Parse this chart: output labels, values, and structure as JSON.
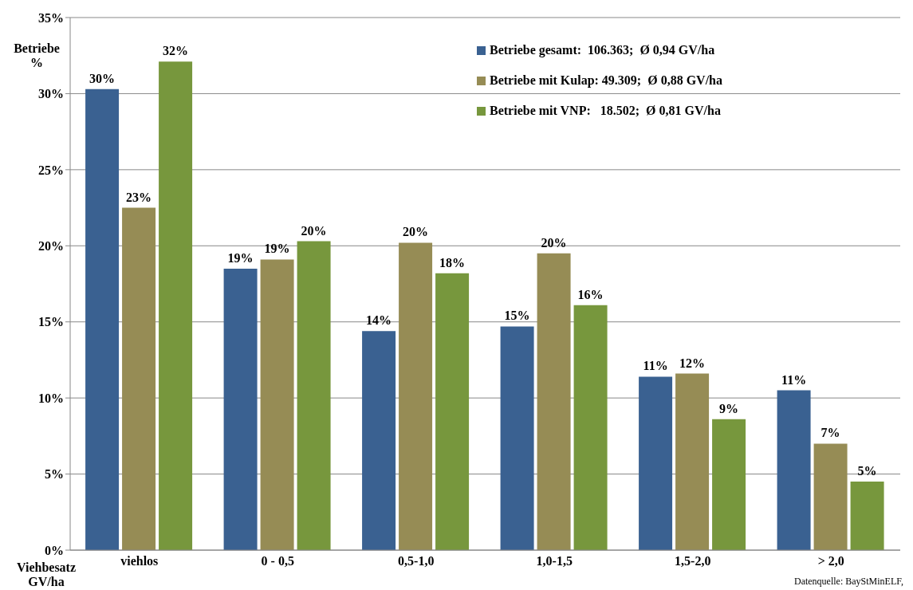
{
  "chart_data": {
    "type": "bar",
    "xlabel": "Viehbesatz GV/ha",
    "ylabel": "Betriebe %",
    "categories": [
      "viehlos",
      "0 - 0,5",
      "0,5-1,0",
      "1,0-1,5",
      "1,5-2,0",
      "> 2,0"
    ],
    "series": [
      {
        "name": "Betriebe gesamt:  106.363;  Ø 0,94 GV/ha",
        "color": "#3a6191",
        "values": [
          30.3,
          18.5,
          14.4,
          14.7,
          11.4,
          10.5
        ],
        "value_labels": [
          "30%",
          "19%",
          "14%",
          "15%",
          "11%",
          "11%"
        ]
      },
      {
        "name": "Betriebe mit Kulap: 49.309;  Ø 0,88 GV/ha",
        "color": "#968c55",
        "values": [
          22.5,
          19.1,
          20.2,
          19.5,
          11.6,
          7.0
        ],
        "value_labels": [
          "23%",
          "19%",
          "20%",
          "20%",
          "12%",
          "7%"
        ]
      },
      {
        "name": "Betriebe mit VNP:   18.502;  Ø 0,81 GV/ha",
        "color": "#77973d",
        "values": [
          32.1,
          20.3,
          18.2,
          16.1,
          8.6,
          4.5
        ],
        "value_labels": [
          "32%",
          "20%",
          "18%",
          "16%",
          "9%",
          "5%"
        ]
      }
    ],
    "ylim": [
      0,
      35
    ],
    "yticks": [
      {
        "value": 0,
        "label": "0%"
      },
      {
        "value": 5,
        "label": "5%"
      },
      {
        "value": 10,
        "label": "10%"
      },
      {
        "value": 15,
        "label": "15%"
      },
      {
        "value": 20,
        "label": "20%"
      },
      {
        "value": 25,
        "label": "25%"
      },
      {
        "value": 30,
        "label": "30%"
      },
      {
        "value": 35,
        "label": "35%"
      }
    ],
    "grid": "y",
    "legend": "top right",
    "annotations": [
      "Datenquelle: BayStMinELF,"
    ]
  }
}
